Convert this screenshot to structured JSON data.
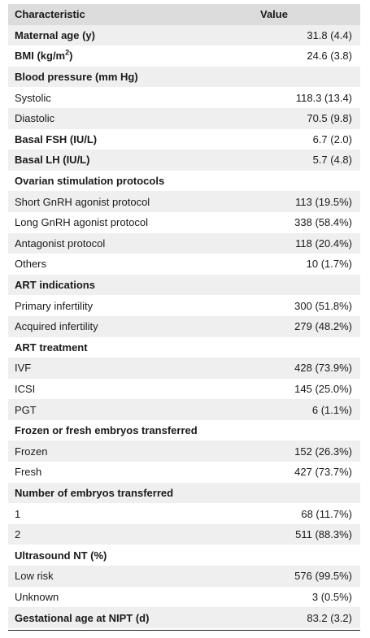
{
  "table": {
    "header": {
      "characteristic": "Characteristic",
      "value": "Value"
    },
    "rows": [
      {
        "label": "Maternal age (y)",
        "value": "31.8 (4.4)",
        "bold": true
      },
      {
        "label": "BMI (kg/m",
        "sup": "2",
        "label_suffix": ")",
        "value": "24.6 (3.8)",
        "bold": true
      },
      {
        "label": "Blood pressure (mm Hg)",
        "value": "",
        "bold": true
      },
      {
        "label": "Systolic",
        "value": "118.3 (13.4)",
        "bold": false
      },
      {
        "label": "Diastolic",
        "value": "70.5 (9.8)",
        "bold": false
      },
      {
        "label": "Basal FSH (IU/L)",
        "value": "6.7 (2.0)",
        "bold": true
      },
      {
        "label": "Basal LH (IU/L)",
        "value": "5.7 (4.8)",
        "bold": true
      },
      {
        "label": "Ovarian stimulation protocols",
        "value": "",
        "bold": true
      },
      {
        "label": "Short GnRH agonist protocol",
        "value": "113 (19.5%)",
        "bold": false
      },
      {
        "label": "Long GnRH agonist protocol",
        "value": "338 (58.4%)",
        "bold": false
      },
      {
        "label": "Antagonist protocol",
        "value": "118 (20.4%)",
        "bold": false
      },
      {
        "label": "Others",
        "value": "10 (1.7%)",
        "bold": false
      },
      {
        "label": "ART indications",
        "value": "",
        "bold": true
      },
      {
        "label": "Primary infertility",
        "value": "300 (51.8%)",
        "bold": false
      },
      {
        "label": "Acquired infertility",
        "value": "279 (48.2%)",
        "bold": false
      },
      {
        "label": "ART treatment",
        "value": "",
        "bold": true
      },
      {
        "label": "IVF",
        "value": "428 (73.9%)",
        "bold": false
      },
      {
        "label": "ICSI",
        "value": "145 (25.0%)",
        "bold": false
      },
      {
        "label": "PGT",
        "value": "6 (1.1%)",
        "bold": false
      },
      {
        "label": "Frozen or fresh embryos transferred",
        "value": "",
        "bold": true
      },
      {
        "label": "Frozen",
        "value": "152 (26.3%)",
        "bold": false
      },
      {
        "label": "Fresh",
        "value": "427 (73.7%)",
        "bold": false
      },
      {
        "label": "Number of embryos transferred",
        "value": "",
        "bold": true
      },
      {
        "label": "1",
        "value": "68 (11.7%)",
        "bold": false
      },
      {
        "label": "2",
        "value": "511 (88.3%)",
        "bold": false
      },
      {
        "label": "Ultrasound NT (%)",
        "value": "",
        "bold": true
      },
      {
        "label": "Low risk",
        "value": "576 (99.5%)",
        "bold": false
      },
      {
        "label": "Unknown",
        "value": "3 (0.5%)",
        "bold": false
      },
      {
        "label": "Gestational age at NIPT (d)",
        "value": "83.2 (3.2)",
        "bold": true
      }
    ]
  }
}
